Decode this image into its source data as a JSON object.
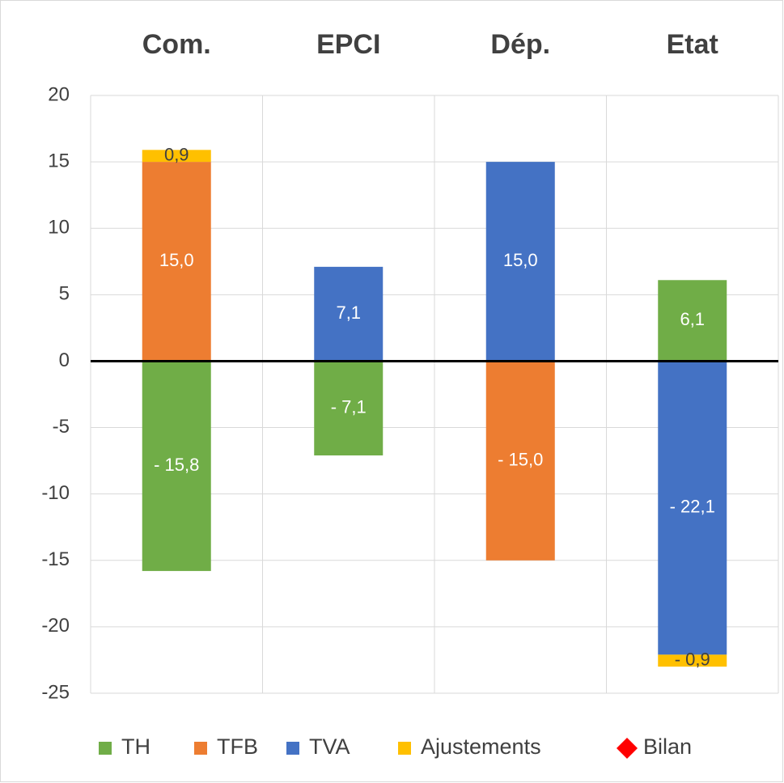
{
  "chart_data": {
    "type": "stacked_bar",
    "categories": [
      "Com.",
      "EPCI",
      "Dép.",
      "Etat"
    ],
    "series": [
      {
        "name": "TH",
        "color": "#70ad47",
        "values": [
          -15.8,
          -7.1,
          null,
          6.1
        ],
        "value_labels": [
          "- 15,8",
          "- 7,1",
          null,
          "6,1"
        ]
      },
      {
        "name": "TFB",
        "color": "#ed7d31",
        "values": [
          15.0,
          null,
          -15.0,
          null
        ],
        "value_labels": [
          "15,0",
          null,
          "- 15,0",
          null
        ]
      },
      {
        "name": "TVA",
        "color": "#4472c4",
        "values": [
          null,
          7.1,
          15.0,
          -22.1
        ],
        "value_labels": [
          null,
          "7,1",
          "15,0",
          "- 22,1"
        ]
      },
      {
        "name": "Ajustements",
        "color": "#ffc000",
        "values": [
          0.9,
          null,
          null,
          -0.9
        ],
        "value_labels": [
          "0,9",
          null,
          null,
          "- 0,9"
        ]
      },
      {
        "name": "Bilan",
        "color": "#ff0000",
        "marker": "diamond",
        "values": [
          null,
          null,
          null,
          null
        ]
      }
    ],
    "ylim": [
      -25,
      20
    ],
    "yticks": [
      -25,
      -20,
      -15,
      -10,
      -5,
      0,
      5,
      10,
      15,
      20
    ],
    "grid": true,
    "legend": "bottom"
  }
}
